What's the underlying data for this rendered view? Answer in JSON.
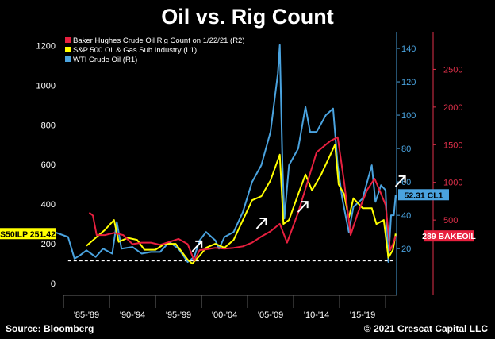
{
  "chart_data": {
    "type": "line",
    "title": "Oil vs. Rig Count",
    "x_ticks": [
      "'85-'89",
      "'90-'94",
      "'95-'99",
      "'00-'04",
      "'05-'09",
      "'10-'14",
      "'15-'19"
    ],
    "x_range": [
      1985,
      2021.2
    ],
    "y_left": {
      "ticks": [
        0,
        200,
        400,
        600,
        800,
        1000,
        1200
      ],
      "range": [
        -60,
        1270
      ]
    },
    "y_right1": {
      "ticks": [
        20,
        40,
        60,
        80,
        100,
        120,
        140
      ],
      "range": [
        -8,
        150
      ]
    },
    "y_right2": {
      "ticks": [
        500,
        1000,
        1500,
        2000,
        2500
      ],
      "range": [
        -500,
        3000
      ]
    },
    "legend": {
      "placement": "top-left",
      "entries": [
        {
          "label": "Baker Hughes Crude Oil Rig Count on 1/22/21 (R2)",
          "color": "#e8203f"
        },
        {
          "label": "S&P 500 Oil & Gas Sub Industry (L1)",
          "color": "#ffff00"
        },
        {
          "label": "WTI Crude Oil (R1)",
          "color": "#4aa3df"
        }
      ]
    },
    "series": [
      {
        "name": "WTI Crude Oil (R1)",
        "axis": "right1",
        "color": "#4aa3df",
        "points": [
          [
            1983.5,
            31
          ],
          [
            1984.5,
            29
          ],
          [
            1985.5,
            27
          ],
          [
            1986.2,
            14
          ],
          [
            1986.8,
            16
          ],
          [
            1987.5,
            19
          ],
          [
            1988.5,
            15
          ],
          [
            1989.3,
            20
          ],
          [
            1990.3,
            17
          ],
          [
            1990.8,
            36
          ],
          [
            1991.3,
            20
          ],
          [
            1992.5,
            21
          ],
          [
            1993.5,
            17
          ],
          [
            1994.5,
            18
          ],
          [
            1995.5,
            18
          ],
          [
            1996.5,
            24
          ],
          [
            1997.5,
            20
          ],
          [
            1998.5,
            12
          ],
          [
            1999.2,
            15
          ],
          [
            1999.8,
            25
          ],
          [
            2000.5,
            30
          ],
          [
            2001.5,
            25
          ],
          [
            2001.9,
            20
          ],
          [
            2002.5,
            27
          ],
          [
            2003.5,
            30
          ],
          [
            2004.5,
            42
          ],
          [
            2005.5,
            60
          ],
          [
            2006.5,
            70
          ],
          [
            2007.5,
            90
          ],
          [
            2008.3,
            125
          ],
          [
            2008.5,
            142
          ],
          [
            2008.8,
            70
          ],
          [
            2009.0,
            38
          ],
          [
            2009.5,
            70
          ],
          [
            2010.5,
            80
          ],
          [
            2011.3,
            105
          ],
          [
            2011.8,
            90
          ],
          [
            2012.5,
            90
          ],
          [
            2013.5,
            100
          ],
          [
            2014.3,
            104
          ],
          [
            2014.8,
            70
          ],
          [
            2015.3,
            50
          ],
          [
            2016.0,
            30
          ],
          [
            2016.5,
            45
          ],
          [
            2017.5,
            50
          ],
          [
            2018.5,
            70
          ],
          [
            2018.9,
            48
          ],
          [
            2019.5,
            58
          ],
          [
            2020.0,
            55
          ],
          [
            2020.3,
            12
          ],
          [
            2020.6,
            40
          ],
          [
            2020.9,
            40
          ],
          [
            2021.1,
            52.31
          ]
        ]
      },
      {
        "name": "S&P 500 Oil & Gas Sub Industry (L1)",
        "axis": "left",
        "color": "#ffff00",
        "points": [
          [
            1987.5,
            190
          ],
          [
            1988.5,
            230
          ],
          [
            1989.5,
            270
          ],
          [
            1990.5,
            320
          ],
          [
            1991.0,
            210
          ],
          [
            1992.0,
            230
          ],
          [
            1993.0,
            220
          ],
          [
            1993.8,
            170
          ],
          [
            1995.0,
            170
          ],
          [
            1996.0,
            200
          ],
          [
            1997.2,
            200
          ],
          [
            1998.5,
            120
          ],
          [
            1999.0,
            100
          ],
          [
            1999.8,
            140
          ],
          [
            2000.5,
            180
          ],
          [
            2001.5,
            200
          ],
          [
            2002.5,
            180
          ],
          [
            2003.5,
            220
          ],
          [
            2004.5,
            320
          ],
          [
            2005.5,
            420
          ],
          [
            2006.5,
            440
          ],
          [
            2007.5,
            520
          ],
          [
            2008.5,
            650
          ],
          [
            2008.9,
            300
          ],
          [
            2009.5,
            320
          ],
          [
            2010.5,
            450
          ],
          [
            2011.3,
            550
          ],
          [
            2012.0,
            470
          ],
          [
            2013.0,
            550
          ],
          [
            2014.0,
            650
          ],
          [
            2014.5,
            700
          ],
          [
            2014.9,
            500
          ],
          [
            2015.5,
            450
          ],
          [
            2016.0,
            330
          ],
          [
            2016.5,
            430
          ],
          [
            2017.5,
            380
          ],
          [
            2018.5,
            380
          ],
          [
            2019.0,
            300
          ],
          [
            2019.8,
            320
          ],
          [
            2020.3,
            130
          ],
          [
            2020.8,
            170
          ],
          [
            2021.1,
            251.42
          ]
        ]
      },
      {
        "name": "Baker Hughes Crude Oil Rig Count on 1/22/21 (R2)",
        "axis": "right2",
        "color": "#e8203f",
        "points": [
          [
            1987.8,
            600
          ],
          [
            1988.2,
            560
          ],
          [
            1988.6,
            300
          ],
          [
            1989.5,
            300
          ],
          [
            1990.5,
            330
          ],
          [
            1991.5,
            300
          ],
          [
            1992.5,
            180
          ],
          [
            1993.5,
            200
          ],
          [
            1994.5,
            200
          ],
          [
            1995.5,
            170
          ],
          [
            1996.5,
            210
          ],
          [
            1997.5,
            250
          ],
          [
            1998.5,
            180
          ],
          [
            1999.2,
            -40
          ],
          [
            1999.8,
            100
          ],
          [
            2000.5,
            110
          ],
          [
            2001.5,
            130
          ],
          [
            2002.5,
            120
          ],
          [
            2003.5,
            130
          ],
          [
            2004.5,
            150
          ],
          [
            2005.5,
            200
          ],
          [
            2006.5,
            280
          ],
          [
            2007.5,
            350
          ],
          [
            2008.5,
            450
          ],
          [
            2009.3,
            200
          ],
          [
            2010.5,
            600
          ],
          [
            2011.5,
            1000
          ],
          [
            2012.5,
            1400
          ],
          [
            2014.0,
            1550
          ],
          [
            2014.8,
            1600
          ],
          [
            2015.5,
            1000
          ],
          [
            2016.2,
            300
          ],
          [
            2017.0,
            600
          ],
          [
            2018.0,
            900
          ],
          [
            2018.8,
            1050
          ],
          [
            2019.5,
            850
          ],
          [
            2020.0,
            700
          ],
          [
            2020.5,
            100
          ],
          [
            2020.8,
            180
          ],
          [
            2021.1,
            289
          ]
        ]
      }
    ],
    "reference_line": {
      "axis": "left",
      "value": 115,
      "style": "dashed",
      "color": "#ffffff"
    },
    "end_tags": [
      {
        "label": "S50ILP 251.42",
        "axis": "left",
        "side": "left",
        "bg": "#ffff00",
        "fg": "#000000"
      },
      {
        "label": "52.31 CL1",
        "axis": "right1",
        "side": "right",
        "bg": "#4aa3df",
        "fg": "#000000"
      },
      {
        "label": "289 BAKEOIL",
        "axis": "right2",
        "side": "right",
        "bg": "#e8203f",
        "fg": "#ffffff"
      }
    ],
    "annotations": [
      {
        "type": "arrow",
        "x": 1999.5,
        "y": 165,
        "axis": "right2",
        "color": "#ffffff"
      },
      {
        "type": "arrow",
        "x": 2006.5,
        "y": 470,
        "axis": "right2",
        "color": "#ffffff"
      },
      {
        "type": "arrow",
        "x": 2011.0,
        "y": 690,
        "axis": "right2",
        "color": "#ffffff"
      },
      {
        "type": "arrow",
        "x": 2021.6,
        "y": 1030,
        "axis": "right2",
        "color": "#ffffff"
      }
    ]
  },
  "footer": {
    "source": "Source: Bloomberg",
    "copyright": "© 2021 Crescat Capital LLC"
  }
}
